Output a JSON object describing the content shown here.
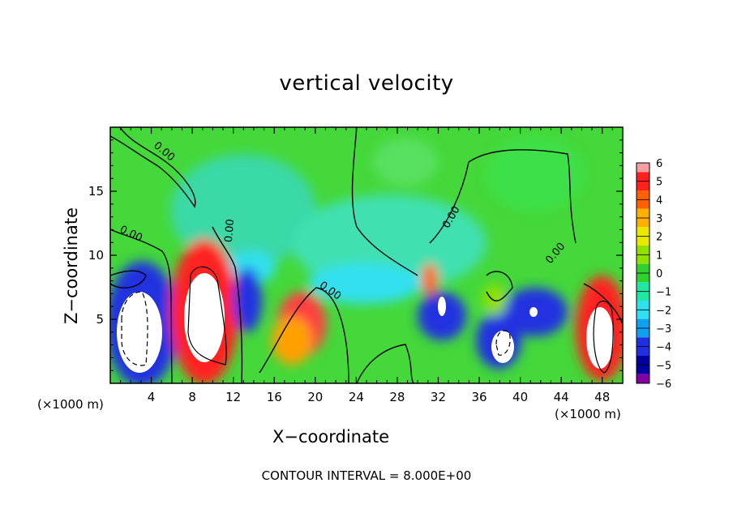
{
  "chart_data": {
    "type": "heatmap",
    "title": "vertical velocity",
    "xlabel": "X−coordinate",
    "ylabel": "Z−coordinate",
    "x_unit_left": "(×1000 m)",
    "x_unit_right": "(×1000 m)",
    "footer": "CONTOUR INTERVAL = 8.000E+00",
    "xlim": [
      0,
      50
    ],
    "ylim": [
      0,
      20
    ],
    "x_ticks": [
      4,
      8,
      12,
      16,
      20,
      24,
      28,
      32,
      36,
      40,
      44,
      48
    ],
    "y_ticks": [
      5,
      10,
      15
    ],
    "colorbar": {
      "levels": [
        6,
        5,
        4,
        3,
        2,
        1,
        0,
        -1,
        -2,
        -3,
        -4,
        -5,
        -6
      ],
      "colors": [
        "#f4a0a0",
        "#ff2020",
        "#ff6000",
        "#ffb000",
        "#e8e800",
        "#90e000",
        "#30d030",
        "#20e8a0",
        "#30e0f0",
        "#10a0f0",
        "#2030e0",
        "#0000a0",
        "#8000a0"
      ]
    },
    "contour_labels": [
      "0.00",
      "0.00",
      "0.00",
      "0.00",
      "0.00",
      "0.00"
    ]
  }
}
